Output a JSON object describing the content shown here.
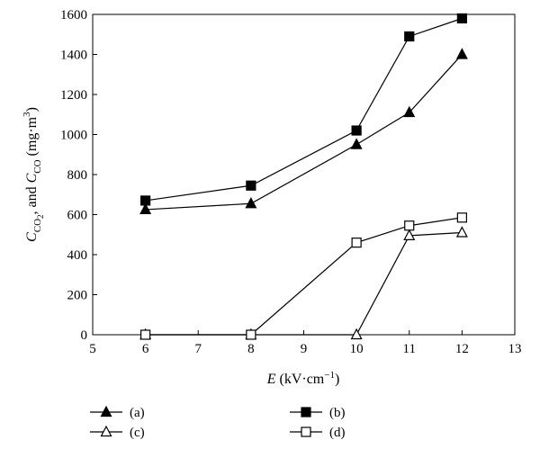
{
  "chart_data": {
    "type": "line",
    "xlabel": {
      "var": "E",
      "unit": " (kV·cm",
      "exp": "−1",
      "close": ")"
    },
    "ylabel": {
      "c1": "C",
      "sub1": "CO",
      "sub1b": "2",
      "mid": ", and ",
      "c2": "C",
      "sub2": "CO",
      "unit": " (mg·m",
      "exp": "3",
      "close": ")"
    },
    "xlim": [
      5,
      13
    ],
    "ylim": [
      0,
      1600
    ],
    "xticks": [
      "5",
      "6",
      "7",
      "8",
      "9",
      "10",
      "11",
      "12",
      "13"
    ],
    "yticks": [
      "0",
      "200",
      "400",
      "600",
      "800",
      "1000",
      "1200",
      "1400",
      "1600"
    ],
    "grid": false,
    "legend_position": "bottom",
    "series": [
      {
        "name": "(a)",
        "marker": "triangle",
        "filled": true,
        "x": [
          6,
          8,
          10,
          11,
          12
        ],
        "y": [
          625,
          655,
          950,
          1110,
          1400
        ]
      },
      {
        "name": "(b)",
        "marker": "square",
        "filled": true,
        "x": [
          6,
          8,
          10,
          11,
          12
        ],
        "y": [
          670,
          745,
          1020,
          1490,
          1580
        ]
      },
      {
        "name": "(c)",
        "marker": "triangle",
        "filled": false,
        "x": [
          6,
          8,
          10,
          11,
          12
        ],
        "y": [
          0,
          0,
          0,
          495,
          510
        ]
      },
      {
        "name": "(d)",
        "marker": "square",
        "filled": false,
        "x": [
          6,
          8,
          10,
          11,
          12
        ],
        "y": [
          0,
          0,
          460,
          545,
          585
        ]
      }
    ]
  }
}
